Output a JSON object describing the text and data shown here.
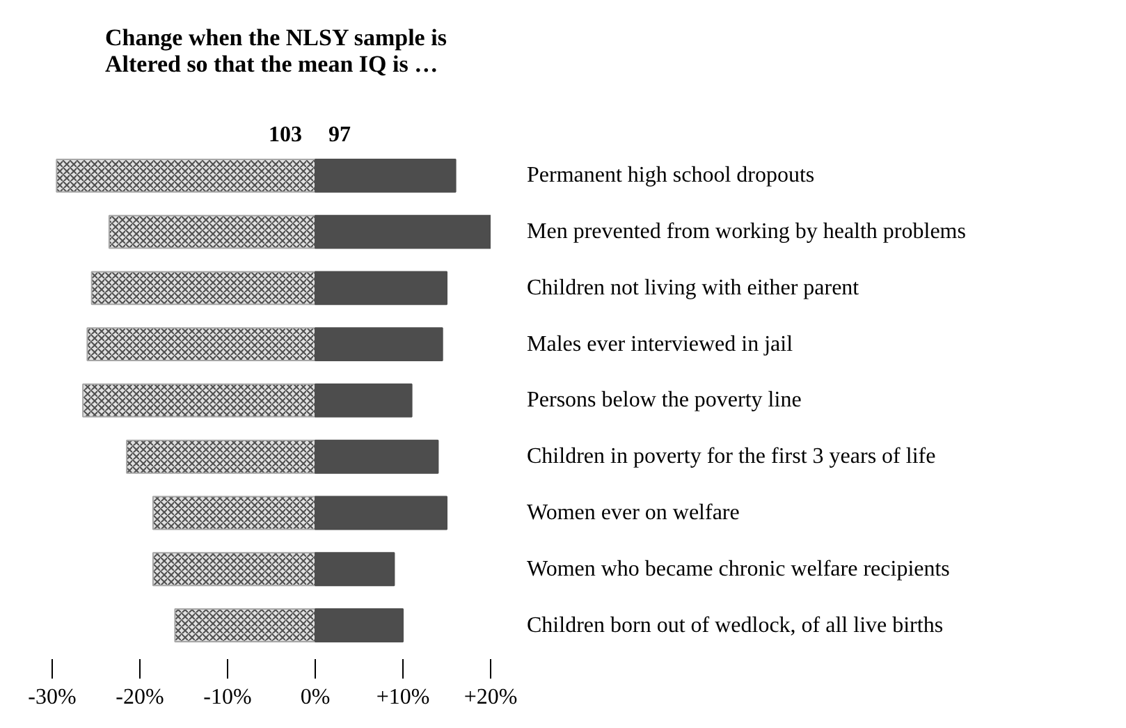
{
  "chart_data": {
    "type": "bar",
    "orientation": "horizontal",
    "title": "Change when the NLSY sample is\nAltered so that the mean IQ is …",
    "categories": [
      "Permanent high school dropouts",
      "Men prevented from working by health problems",
      "Children not living with either parent",
      "Males ever interviewed in jail",
      "Persons below the poverty line",
      "Children in poverty for the first 3 years of life",
      "Women ever on welfare",
      "Women who became chronic welfare recipients",
      "Children born out of wedlock, of all live births"
    ],
    "series": [
      {
        "name": "103",
        "color": "#a6a6a6",
        "values": [
          -29.5,
          -23.5,
          -25.5,
          -26,
          -26.5,
          -21.5,
          -18.5,
          -18.5,
          -16
        ]
      },
      {
        "name": "97",
        "color": "#4d4d4d",
        "values": [
          16,
          20,
          15,
          14.5,
          11,
          14,
          15,
          9,
          10
        ]
      }
    ],
    "xlim": [
      -30,
      20
    ],
    "stacked": true,
    "xticks": [
      {
        "value": -30,
        "label": "-30%"
      },
      {
        "value": -20,
        "label": "-20%"
      },
      {
        "value": -10,
        "label": "-10%"
      },
      {
        "value": 0,
        "label": "0%"
      },
      {
        "value": 10,
        "label": "+10%"
      },
      {
        "value": 20,
        "label": "+20%"
      }
    ],
    "grid": false
  }
}
